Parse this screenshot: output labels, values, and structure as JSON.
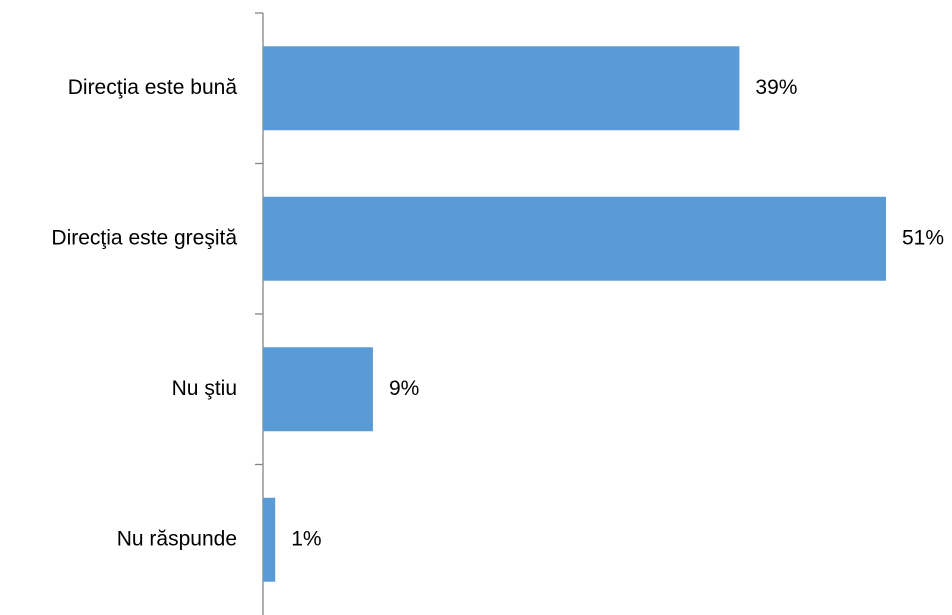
{
  "chart_data": {
    "type": "bar",
    "orientation": "horizontal",
    "title": "",
    "xlabel": "",
    "ylabel": "",
    "categories": [
      "Direcţia este bună",
      "Direcţia este greşită",
      "Nu ştiu",
      "Nu răspunde"
    ],
    "values": [
      39,
      51,
      9,
      1
    ],
    "value_labels": [
      "39%",
      "51%",
      "9%",
      "1%"
    ],
    "unit": "%",
    "xlim": [
      0,
      51
    ],
    "grid": false,
    "legend": "none",
    "bar_color": "#5B9BD5",
    "axis_color": "#868686"
  }
}
